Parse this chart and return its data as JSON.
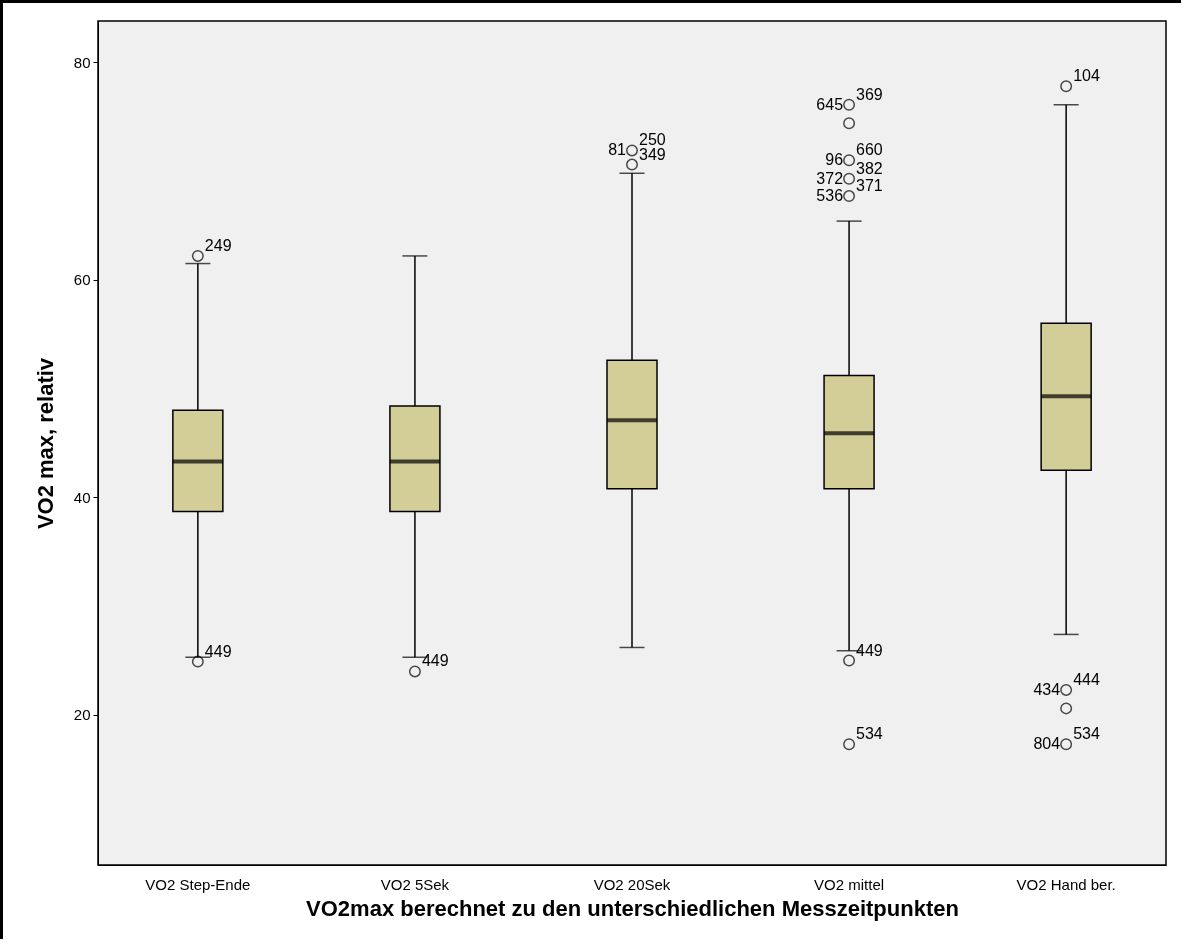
{
  "chart_data": {
    "type": "box",
    "xlabel": "VO2max berechnet zu den unterschiedlichen Messzeitpunkten",
    "ylabel": "VO2 max, relativ",
    "categories": [
      "VO2 Step-Ende",
      "VO2 5Sek",
      "VO2 20Sek",
      "VO2 mittel",
      "VO2 Hand ber."
    ],
    "series": [
      {
        "color": "#d3ce97",
        "boxes": [
          {
            "low": 25.3,
            "q1": 38.7,
            "median": 43.3,
            "q3": 48.0,
            "high": 61.5
          },
          {
            "low": 25.3,
            "q1": 38.7,
            "median": 43.3,
            "q3": 48.4,
            "high": 62.2
          },
          {
            "low": 26.2,
            "q1": 40.8,
            "median": 47.1,
            "q3": 52.6,
            "high": 69.8
          },
          {
            "low": 25.9,
            "q1": 40.8,
            "median": 45.9,
            "q3": 51.2,
            "high": 65.4
          },
          {
            "low": 27.4,
            "q1": 42.5,
            "median": 49.3,
            "q3": 56.0,
            "high": 76.1
          }
        ]
      },
      {
        "type": "scatter",
        "color": "#000000",
        "x": [
          "VO2 Step-Ende",
          "VO2 Step-Ende",
          "VO2 5Sek",
          "VO2 20Sek",
          "VO2 20Sek",
          "VO2 mittel",
          "VO2 mittel",
          "VO2 mittel",
          "VO2 mittel",
          "VO2 mittel",
          "VO2 mittel",
          "VO2 mittel",
          "VO2 Hand ber.",
          "VO2 Hand ber.",
          "VO2 Hand ber.",
          "VO2 Hand ber."
        ],
        "values": [
          62.2,
          24.9,
          24.0,
          71.9,
          70.6,
          76.1,
          74.4,
          71.0,
          69.3,
          67.7,
          25.0,
          17.3,
          77.8,
          22.3,
          20.6,
          17.3
        ]
      }
    ],
    "ylim": [
      6.2,
      83.8
    ],
    "yticks": [
      20,
      40,
      60,
      80
    ],
    "grid": false,
    "marker": "circle",
    "annotations": [
      {
        "text": "249",
        "x": "VO2 Step-Ende",
        "y": 62.2
      },
      {
        "text": "449",
        "x": "VO2 Step-Ende",
        "y": 24.9
      },
      {
        "text": "449",
        "x": "VO2 5Sek",
        "y": 24.0
      },
      {
        "text": "81",
        "x": "VO2 20Sek",
        "y": 71.9
      },
      {
        "text": "250",
        "x": "VO2 20Sek",
        "y": 71.9
      },
      {
        "text": "349",
        "x": "VO2 20Sek",
        "y": 70.6
      },
      {
        "text": "645",
        "x": "VO2 mittel",
        "y": 76.1
      },
      {
        "text": "369",
        "x": "VO2 mittel",
        "y": 76.1
      },
      {
        "text": "96",
        "x": "VO2 mittel",
        "y": 71.0
      },
      {
        "text": "660",
        "x": "VO2 mittel",
        "y": 71.0
      },
      {
        "text": "372",
        "x": "VO2 mittel",
        "y": 69.3
      },
      {
        "text": "382",
        "x": "VO2 mittel",
        "y": 69.3
      },
      {
        "text": "536",
        "x": "VO2 mittel",
        "y": 67.7
      },
      {
        "text": "371",
        "x": "VO2 mittel",
        "y": 67.7
      },
      {
        "text": "449",
        "x": "VO2 mittel",
        "y": 25.0
      },
      {
        "text": "534",
        "x": "VO2 mittel",
        "y": 17.3
      },
      {
        "text": "104",
        "x": "VO2 Hand ber.",
        "y": 77.8
      },
      {
        "text": "434",
        "x": "VO2 Hand ber.",
        "y": 22.3
      },
      {
        "text": "444",
        "x": "VO2 Hand ber.",
        "y": 22.3
      },
      {
        "text": "804",
        "x": "VO2 Hand ber.",
        "y": 17.3
      },
      {
        "text": "534",
        "x": "VO2 Hand ber.",
        "y": 17.3
      }
    ]
  }
}
